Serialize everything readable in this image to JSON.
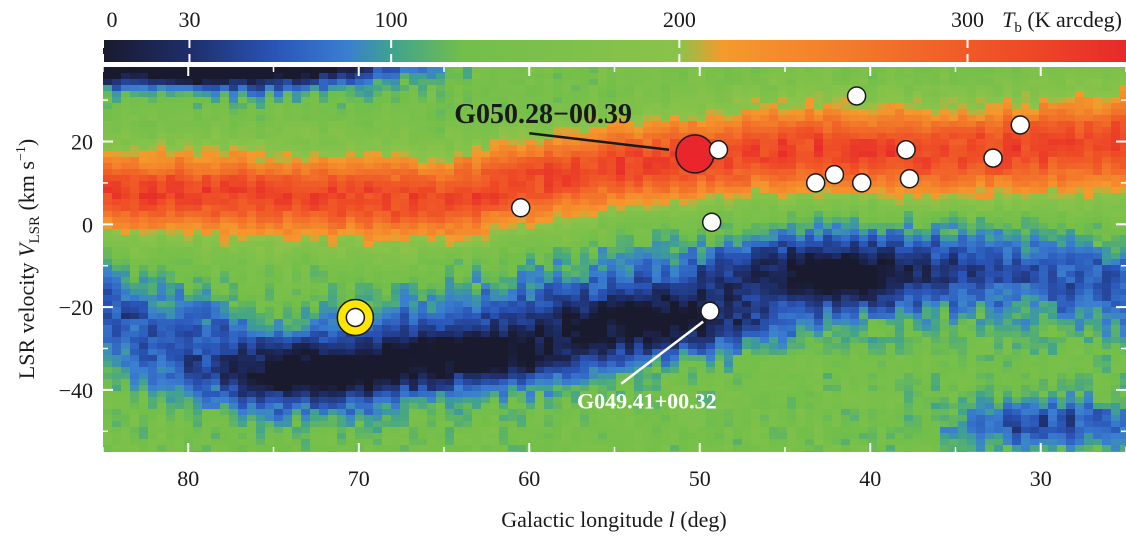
{
  "chart_data": {
    "type": "heatmap",
    "title": "",
    "xlabel": "Galactic longitude l (deg)",
    "ylabel": "LSR velocity V_LSR (km s^-1)",
    "xlabel_parts": {
      "main": "Galactic longitude ",
      "var": "l",
      "unit": " (deg)"
    },
    "ylabel_parts": {
      "main": "LSR velocity ",
      "var": "V",
      "sub": "LSR",
      "unit_open": " (km s",
      "sup": "−1",
      "unit_close": ")"
    },
    "xlim": [
      85,
      25
    ],
    "ylim": [
      -55,
      38
    ],
    "x_ticks": [
      80,
      70,
      60,
      50,
      40,
      30
    ],
    "x_tick_labels": [
      "80",
      "70",
      "60",
      "50",
      "40",
      "30"
    ],
    "y_ticks": [
      20,
      0,
      -20,
      -40
    ],
    "y_tick_labels": [
      "20",
      "0",
      "−20",
      "−40"
    ],
    "colorbar": {
      "label_var": "T",
      "label_sub": "b",
      "label_unit": " (K arcdeg)",
      "range": [
        0,
        355
      ],
      "ticks": [
        0,
        30,
        100,
        200,
        300
      ],
      "tick_labels": [
        "0",
        "30",
        "100",
        "200",
        "300"
      ],
      "colormap": [
        [
          0,
          "#1a1a2e"
        ],
        [
          30,
          "#1e2e6a"
        ],
        [
          60,
          "#2a55b8"
        ],
        [
          85,
          "#3a7fd0"
        ],
        [
          100,
          "#3fa28f"
        ],
        [
          125,
          "#72bf4a"
        ],
        [
          200,
          "#8bc34a"
        ],
        [
          215,
          "#f59a2c"
        ],
        [
          260,
          "#f37a2a"
        ],
        [
          320,
          "#ee4a26"
        ],
        [
          355,
          "#e62a2a"
        ]
      ]
    },
    "emission_bands": {
      "description_free": true,
      "orange_band": [
        [
          85,
          8,
          10
        ],
        [
          75,
          7,
          10
        ],
        [
          65,
          6,
          10
        ],
        [
          55,
          14,
          10
        ],
        [
          45,
          18,
          11
        ],
        [
          35,
          17,
          11
        ],
        [
          25,
          20,
          12
        ]
      ],
      "blue_band": [
        [
          85,
          -22,
          14
        ],
        [
          75,
          -36,
          13
        ],
        [
          65,
          -28,
          14
        ],
        [
          55,
          -20,
          14
        ],
        [
          45,
          -12,
          14
        ],
        [
          35,
          -10,
          13
        ],
        [
          25,
          -15,
          12
        ]
      ],
      "dark_blob_upper": [
        [
          85,
          40,
          10
        ],
        [
          78,
          38,
          8
        ],
        [
          72,
          42,
          6
        ]
      ],
      "dark_blob_lower": [
        [
          72,
          -36,
          6
        ],
        [
          62,
          -32,
          6
        ],
        [
          52,
          -24,
          6
        ],
        [
          42,
          -12,
          5
        ],
        [
          30,
          -48,
          6
        ]
      ]
    },
    "markers": [
      {
        "l": 70.2,
        "v": -22.5,
        "style": "yellow-ring"
      },
      {
        "l": 60.5,
        "v": 4.0,
        "style": "white"
      },
      {
        "l": 48.9,
        "v": 18.0,
        "style": "white"
      },
      {
        "l": 49.3,
        "v": 0.5,
        "style": "white"
      },
      {
        "l": 49.4,
        "v": -21.0,
        "style": "white"
      },
      {
        "l": 43.2,
        "v": 10.0,
        "style": "white"
      },
      {
        "l": 42.1,
        "v": 12.0,
        "style": "white"
      },
      {
        "l": 40.5,
        "v": 10.0,
        "style": "white"
      },
      {
        "l": 40.8,
        "v": 31.0,
        "style": "white"
      },
      {
        "l": 37.9,
        "v": 18.0,
        "style": "white"
      },
      {
        "l": 37.7,
        "v": 11.0,
        "style": "white"
      },
      {
        "l": 32.8,
        "v": 16.0,
        "style": "white"
      },
      {
        "l": 31.2,
        "v": 24.0,
        "style": "white"
      }
    ],
    "red_marker": {
      "l": 50.28,
      "v": 17.0
    },
    "annotations": [
      {
        "text": "G050.28−00.39",
        "text_l": 64.4,
        "text_v": 24.5,
        "line_from": [
          60.0,
          22.0
        ],
        "line_to": [
          51.8,
          18.0
        ],
        "color": "#1a1a1a",
        "size": 28
      },
      {
        "text": "G049.41+00.32",
        "text_l": 57.2,
        "text_v": -44.5,
        "line_from": [
          54.6,
          -38.5
        ],
        "line_to": [
          49.8,
          -23.5
        ],
        "color": "#ffffff",
        "size": 22
      }
    ]
  }
}
